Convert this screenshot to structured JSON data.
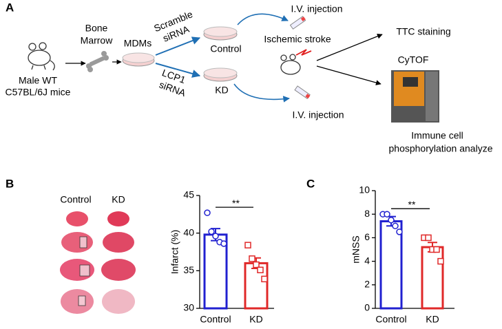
{
  "panel_a": {
    "label": "A",
    "mouse_label": [
      "Male WT",
      "C57BL/6J mice"
    ],
    "bone_label": [
      "Bone",
      "Marrow"
    ],
    "mdms": "MDMs",
    "scramble": [
      "Scramble",
      "siRNA"
    ],
    "lcp1": [
      "LCP1",
      "siRNA"
    ],
    "control": "Control",
    "kd": "KD",
    "iv_top": "I.V. injection",
    "iv_bottom": "I.V. injection",
    "stroke": "Ischemic stroke",
    "ttc": "TTC staining",
    "cytof": "CyTOF",
    "immune": [
      "Immune cell",
      "phosphorylation analyze"
    ]
  },
  "panel_b": {
    "label": "B",
    "columns": [
      "Control",
      "KD"
    ]
  },
  "panel_c": {
    "label": "C"
  },
  "chart_data": [
    {
      "type": "bar",
      "y_label": "Infarct  (%)",
      "categories": [
        "Control",
        "KD"
      ],
      "values": [
        39.8,
        36.0
      ],
      "errors": [
        0.8,
        0.7
      ],
      "points": [
        [
          42.7,
          40.2,
          39.6,
          38.8,
          38.6
        ],
        [
          38.4,
          36.6,
          35.8,
          35.1,
          33.9
        ]
      ],
      "colors": [
        "#2020d0",
        "#e02828"
      ],
      "markers": [
        "circle",
        "square"
      ],
      "ylim": [
        30,
        45
      ],
      "yticks": [
        30,
        35,
        40,
        45
      ],
      "annotation": "**"
    },
    {
      "type": "bar",
      "y_label": "mNSS",
      "categories": [
        "Control",
        "KD"
      ],
      "values": [
        7.4,
        5.2
      ],
      "errors": [
        0.4,
        0.4
      ],
      "points": [
        [
          8,
          8,
          7.5,
          7,
          6.5
        ],
        [
          6,
          6,
          5,
          5,
          4
        ]
      ],
      "colors": [
        "#2020d0",
        "#e02828"
      ],
      "markers": [
        "circle",
        "square"
      ],
      "ylim": [
        0,
        10
      ],
      "yticks": [
        0,
        2,
        4,
        6,
        8,
        10
      ],
      "annotation": "**"
    }
  ]
}
